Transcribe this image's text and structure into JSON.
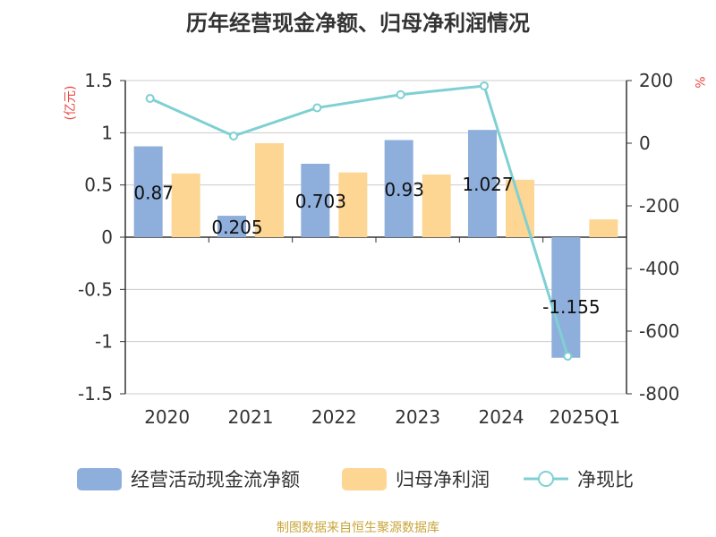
{
  "chart_data": {
    "type": "bar",
    "title": "历年经营现金净额、归母净利润情况",
    "categories": [
      "2020",
      "2021",
      "2022",
      "2023",
      "2024",
      "2025Q1"
    ],
    "series": [
      {
        "name": "经营活动现金流净额",
        "kind": "bar",
        "axis": "left",
        "color": "#8eaedc",
        "values": [
          0.87,
          0.205,
          0.703,
          0.93,
          1.027,
          -1.155
        ],
        "labels": [
          "0.87",
          "0.205",
          "0.703",
          "0.93",
          "1.027",
          "-1.155"
        ]
      },
      {
        "name": "归母净利润",
        "kind": "bar",
        "axis": "left",
        "color": "#fdd693",
        "values": [
          0.61,
          0.9,
          0.62,
          0.6,
          0.55,
          0.17
        ]
      },
      {
        "name": "净现比",
        "kind": "line",
        "axis": "right",
        "color": "#7fd0d3",
        "values": [
          143,
          23,
          113,
          155,
          183,
          -680
        ]
      }
    ],
    "left_axis": {
      "label": "(亿元)",
      "min": -1.5,
      "max": 1.5,
      "ticks": [
        1.5,
        1,
        0.5,
        0,
        -0.5,
        -1,
        -1.5
      ],
      "tick_labels": [
        "1.5",
        "1",
        "0.5",
        "0",
        "-0.5",
        "-1",
        "-1.5"
      ]
    },
    "right_axis": {
      "label": "%",
      "min": -800,
      "max": 200,
      "ticks": [
        200,
        0,
        -200,
        -400,
        -600,
        -800
      ],
      "tick_labels": [
        "200",
        "0",
        "-200",
        "-400",
        "-600",
        "-800"
      ]
    },
    "grid": true,
    "legend_position": "bottom"
  },
  "source": "制图数据来自恒生聚源数据库",
  "colors": {
    "title": "#333333",
    "axis_text": "#333333",
    "unit_label": "#e8473d",
    "grid": "#cccccc",
    "source": "#c9a53a"
  }
}
